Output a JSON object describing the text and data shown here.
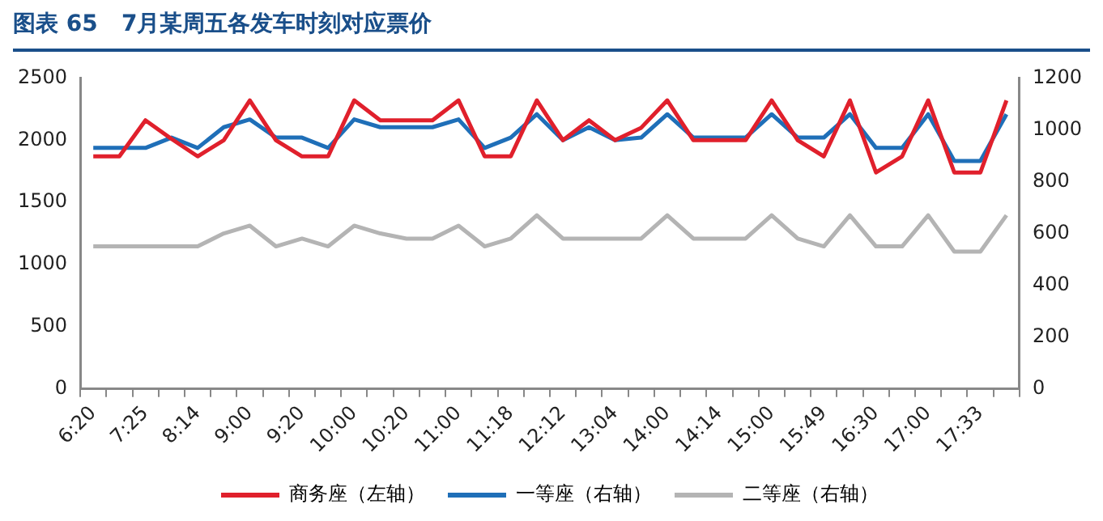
{
  "chart_data": {
    "type": "line",
    "title": "图表 65   7月某周五各发车时刻对应票价",
    "categories": [
      "6:20",
      null,
      "7:25",
      null,
      "8:14",
      null,
      "9:00",
      null,
      "9:20",
      null,
      "10:00",
      null,
      "10:20",
      null,
      "11:00",
      null,
      "11:18",
      null,
      "12:12",
      null,
      "13:04",
      null,
      "14:00",
      null,
      "14:14",
      null,
      "15:00",
      null,
      "15:49",
      null,
      "16:30",
      null,
      "17:00",
      null,
      "17:33",
      null
    ],
    "series": [
      {
        "name": "商务座（左轴）",
        "color": "#e0202c",
        "values": [
          1870,
          1870,
          2160,
          2010,
          1870,
          2000,
          2320,
          2000,
          1870,
          1870,
          2320,
          2160,
          2160,
          2160,
          2320,
          1870,
          1870,
          2320,
          2000,
          2160,
          2000,
          2100,
          2320,
          2000,
          2000,
          2000,
          2320,
          2000,
          1870,
          2320,
          1740,
          1870,
          2320,
          1740,
          1740,
          2320
        ]
      },
      {
        "name": "一等座（右轴）",
        "color": "#1f6fb8",
        "axis": "y2",
        "values": [
          930,
          930,
          930,
          970,
          930,
          1010,
          1040,
          970,
          970,
          930,
          1040,
          1010,
          1010,
          1010,
          1040,
          930,
          970,
          1060,
          960,
          1010,
          960,
          970,
          1060,
          970,
          970,
          970,
          1060,
          970,
          970,
          1060,
          930,
          930,
          1060,
          880,
          880,
          1060
        ]
      },
      {
        "name": "二等座（右轴）",
        "color": "#b4b4b4",
        "axis": "y2",
        "values": [
          550,
          550,
          550,
          550,
          550,
          600,
          630,
          550,
          580,
          550,
          630,
          600,
          580,
          580,
          630,
          550,
          580,
          670,
          580,
          580,
          580,
          580,
          670,
          580,
          580,
          580,
          670,
          580,
          550,
          670,
          550,
          550,
          670,
          530,
          530,
          670
        ]
      }
    ],
    "ylim": [
      0,
      2500
    ],
    "yticks": [
      0,
      500,
      1000,
      1500,
      2000,
      2500
    ],
    "y2lim": [
      0,
      1200
    ],
    "y2ticks": [
      0,
      200,
      400,
      600,
      800,
      1000,
      1200
    ],
    "grid": false,
    "legend": "bottom",
    "marker": "none",
    "line_style": "solid"
  }
}
